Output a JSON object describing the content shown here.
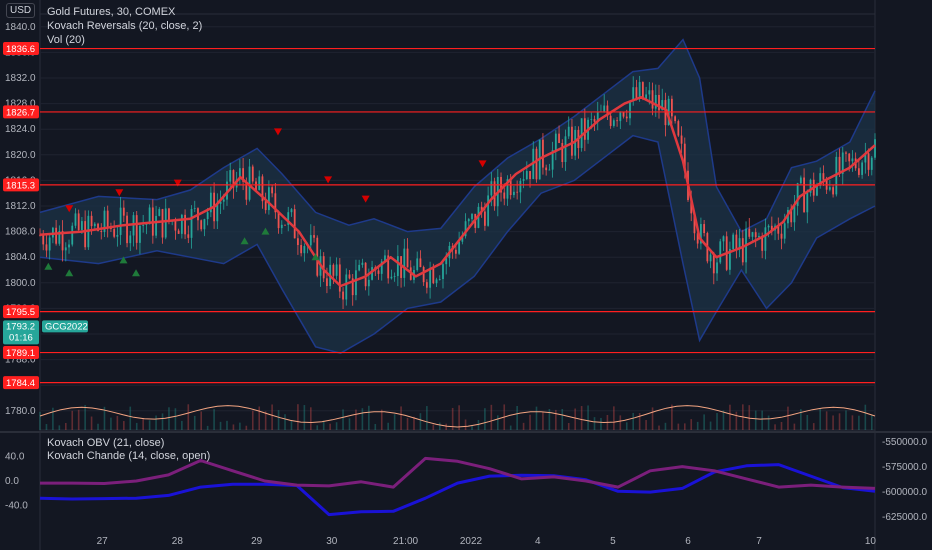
{
  "header": {
    "currency": "USD",
    "legend": [
      "Gold Futures, 30, COMEX",
      "Kovach Reversals (20, close, 2)",
      "Vol (20)"
    ],
    "sub_legend": [
      "Kovach OBV (21, close)",
      "Kovach Chande (14, close, open)"
    ]
  },
  "colors": {
    "background": "#131722",
    "band_fill": "#1c3347",
    "band_edge": "#1e3a8a",
    "midline": "#e0393e",
    "level": "#ff1f1f",
    "bull": "#26a69a",
    "bear": "#ef5350",
    "marker_up": "#1f7a3a",
    "marker_down": "#d50000",
    "vol_line": "#f4a582",
    "obv": "#1a12d6",
    "chande": "#7b1f7b",
    "price_label": "#26a69a"
  },
  "chart_data": [
    {
      "type": "candlestick",
      "title": "Gold Futures, 30, COMEX",
      "ylim": [
        1777.0,
        1842.0
      ],
      "yticks": [
        "1840.0",
        "1836.0",
        "1832.0",
        "1828.0",
        "1824.0",
        "1820.0",
        "1816.0",
        "1812.0",
        "1808.0",
        "1804.0",
        "1800.0",
        "1796.0",
        "1792.0",
        "1788.0",
        "1784.0",
        "1780.0"
      ],
      "xticks": [
        "27",
        "28",
        "29",
        "30",
        "21:00",
        "2022",
        "4",
        "5",
        "6",
        "7",
        "10"
      ],
      "levels": [
        {
          "label": "1836.6",
          "value": 1836.6
        },
        {
          "label": "1826.7",
          "value": 1826.7
        },
        {
          "label": "1815.3",
          "value": 1815.3
        },
        {
          "label": "1795.5",
          "value": 1795.5
        },
        {
          "label": "1789.1",
          "value": 1789.1
        },
        {
          "label": "1784.4",
          "value": 1784.4
        }
      ],
      "last_price": {
        "value": "1793.2",
        "countdown": "01:16",
        "symbol": "GCG2022"
      },
      "midline_points": [
        [
          0.0,
          1807.5
        ],
        [
          0.05,
          1808.0
        ],
        [
          0.1,
          1809.0
        ],
        [
          0.14,
          1809.5
        ],
        [
          0.18,
          1810.0
        ],
        [
          0.21,
          1812.0
        ],
        [
          0.24,
          1816.5
        ],
        [
          0.27,
          1813.0
        ],
        [
          0.31,
          1808.0
        ],
        [
          0.34,
          1802.0
        ],
        [
          0.36,
          1799.5
        ],
        [
          0.39,
          1801.0
        ],
        [
          0.42,
          1804.0
        ],
        [
          0.45,
          1801.0
        ],
        [
          0.48,
          1803.0
        ],
        [
          0.51,
          1808.0
        ],
        [
          0.54,
          1813.0
        ],
        [
          0.57,
          1817.0
        ],
        [
          0.6,
          1819.5
        ],
        [
          0.64,
          1822.0
        ],
        [
          0.67,
          1825.5
        ],
        [
          0.7,
          1828.0
        ],
        [
          0.72,
          1829.0
        ],
        [
          0.75,
          1827.0
        ],
        [
          0.77,
          1819.0
        ],
        [
          0.79,
          1807.0
        ],
        [
          0.81,
          1804.0
        ],
        [
          0.84,
          1805.5
        ],
        [
          0.87,
          1807.5
        ],
        [
          0.89,
          1809.5
        ],
        [
          0.91,
          1813.5
        ],
        [
          0.94,
          1816.0
        ],
        [
          0.97,
          1818.0
        ],
        [
          1.0,
          1821.5
        ]
      ],
      "band_upper": [
        [
          0.0,
          1811.0
        ],
        [
          0.07,
          1813.5
        ],
        [
          0.14,
          1813.0
        ],
        [
          0.18,
          1814.5
        ],
        [
          0.22,
          1818.0
        ],
        [
          0.26,
          1821.0
        ],
        [
          0.29,
          1817.0
        ],
        [
          0.33,
          1811.0
        ],
        [
          0.37,
          1809.0
        ],
        [
          0.4,
          1810.0
        ],
        [
          0.44,
          1808.0
        ],
        [
          0.48,
          1808.5
        ],
        [
          0.52,
          1815.0
        ],
        [
          0.56,
          1819.5
        ],
        [
          0.6,
          1822.5
        ],
        [
          0.64,
          1826.0
        ],
        [
          0.68,
          1830.0
        ],
        [
          0.71,
          1833.0
        ],
        [
          0.74,
          1833.5
        ],
        [
          0.77,
          1838.0
        ],
        [
          0.79,
          1832.0
        ],
        [
          0.81,
          1815.0
        ],
        [
          0.84,
          1808.0
        ],
        [
          0.87,
          1810.0
        ],
        [
          0.9,
          1818.0
        ],
        [
          0.93,
          1819.0
        ],
        [
          0.97,
          1822.0
        ],
        [
          1.0,
          1830.0
        ]
      ],
      "band_lower": [
        [
          0.0,
          1804.0
        ],
        [
          0.07,
          1803.0
        ],
        [
          0.14,
          1805.0
        ],
        [
          0.18,
          1804.0
        ],
        [
          0.22,
          1803.0
        ],
        [
          0.26,
          1806.0
        ],
        [
          0.29,
          1799.0
        ],
        [
          0.33,
          1790.0
        ],
        [
          0.36,
          1789.0
        ],
        [
          0.4,
          1792.0
        ],
        [
          0.44,
          1796.0
        ],
        [
          0.48,
          1797.0
        ],
        [
          0.52,
          1801.0
        ],
        [
          0.56,
          1808.0
        ],
        [
          0.6,
          1814.0
        ],
        [
          0.64,
          1816.0
        ],
        [
          0.68,
          1820.0
        ],
        [
          0.71,
          1823.0
        ],
        [
          0.74,
          1822.0
        ],
        [
          0.77,
          1803.0
        ],
        [
          0.79,
          1791.0
        ],
        [
          0.81,
          1795.5
        ],
        [
          0.84,
          1802.0
        ],
        [
          0.87,
          1796.0
        ],
        [
          0.9,
          1800.0
        ],
        [
          0.93,
          1807.0
        ],
        [
          0.97,
          1810.0
        ],
        [
          1.0,
          1812.0
        ]
      ],
      "markers_down": [
        [
          0.035,
          1811.5
        ],
        [
          0.095,
          1814.0
        ],
        [
          0.165,
          1815.5
        ],
        [
          0.285,
          1823.5
        ],
        [
          0.345,
          1816.0
        ],
        [
          0.39,
          1813.0
        ],
        [
          0.53,
          1818.5
        ]
      ],
      "markers_up": [
        [
          0.01,
          1802.5
        ],
        [
          0.035,
          1801.5
        ],
        [
          0.1,
          1803.5
        ],
        [
          0.115,
          1801.5
        ],
        [
          0.245,
          1806.5
        ],
        [
          0.27,
          1808.0
        ],
        [
          0.33,
          1804.0
        ]
      ]
    },
    {
      "type": "line",
      "title": "Kovach OBV / Kovach Chande",
      "yticks_left": [
        "40.0",
        "0.0",
        "-40.0"
      ],
      "yticks_right": [
        "-550000.0",
        "-575000.0",
        "-600000.0",
        "-625000.0"
      ],
      "series": [
        {
          "name": "Kovach OBV (21, close)",
          "values": [
            -0.42,
            -0.44,
            -0.43,
            -0.42,
            -0.35,
            -0.15,
            -0.08,
            -0.08,
            -0.11,
            -0.82,
            -0.75,
            -0.74,
            -0.42,
            -0.05,
            0.12,
            0.14,
            0.13,
            0.03,
            -0.25,
            -0.27,
            -0.18,
            0.22,
            0.37,
            0.4,
            0.12,
            -0.16,
            -0.25
          ]
        },
        {
          "name": "Kovach Chande (14, close, open)",
          "values": [
            -0.05,
            -0.05,
            -0.06,
            0.0,
            0.15,
            0.5,
            0.25,
            0.0,
            -0.1,
            -0.12,
            -0.02,
            -0.15,
            0.55,
            0.48,
            0.3,
            0.05,
            0.1,
            0.0,
            -0.15,
            0.25,
            0.35,
            0.25,
            0.05,
            -0.15,
            -0.1,
            -0.15,
            -0.18
          ]
        }
      ]
    }
  ]
}
